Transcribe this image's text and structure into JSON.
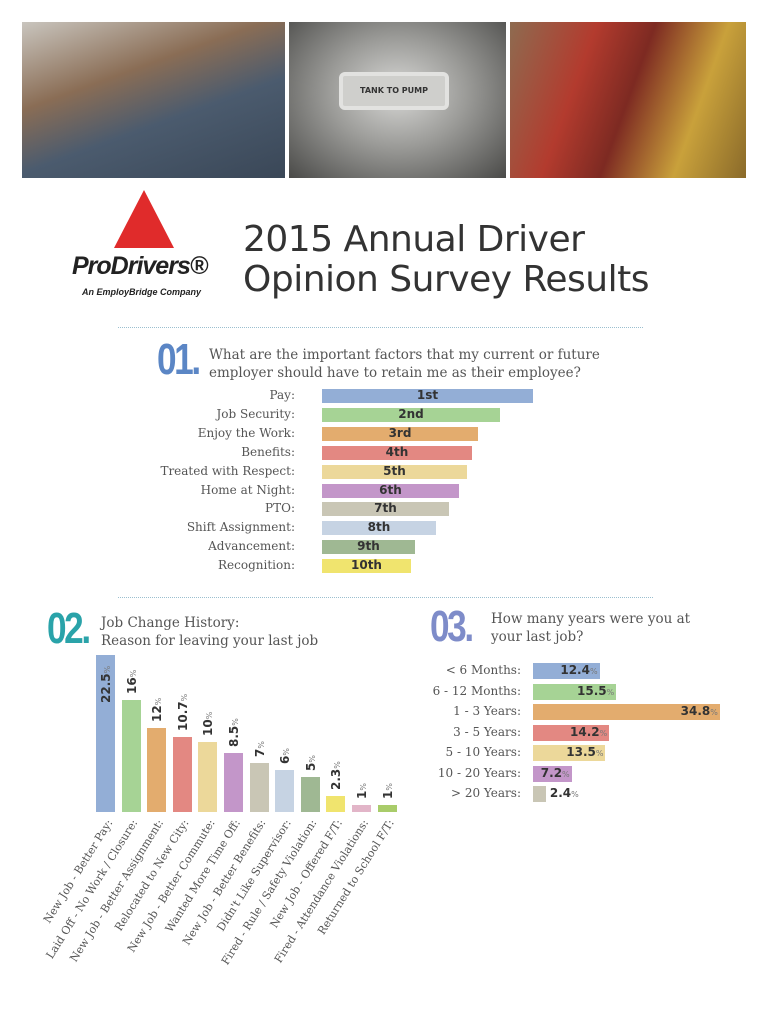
{
  "header": {
    "photos": [
      {
        "name": "drivers-with-clipboard"
      },
      {
        "name": "tank-to-pump-switch",
        "text": "TANK TO PUMP"
      },
      {
        "name": "worker-with-chains"
      }
    ],
    "logo": {
      "name": "ProDrivers®",
      "subtitle": "An EmployBridge Company"
    },
    "title_line1": "2015 Annual Driver",
    "title_line2": "Opinion Survey Results"
  },
  "chart_data": [
    {
      "type": "bar",
      "orientation": "horizontal",
      "number": "01.",
      "title": "What are the important factors that my current or future employer should have to retain me as their employee?",
      "categories": [
        "Pay:",
        "Job Security:",
        "Enjoy the Work:",
        "Benefits:",
        "Treated with Respect:",
        "Home at Night:",
        "PTO:",
        "Shift Assignment:",
        "Advancement:",
        "Recognition:"
      ],
      "values": [
        "1st",
        "2nd",
        "3rd",
        "4th",
        "5th",
        "6th",
        "7th",
        "8th",
        "9th",
        "10th"
      ],
      "colors": [
        "#93aed6",
        "#a6d395",
        "#e3ac6e",
        "#e38882",
        "#ecd89a",
        "#c396c9",
        "#c9c6b5",
        "#c6d3e3",
        "#9fb893",
        "#f0e46e"
      ]
    },
    {
      "type": "bar",
      "orientation": "vertical",
      "number": "02.",
      "title": "Job Change History:",
      "subtitle": "Reason for leaving your last job",
      "unit": "%",
      "categories": [
        "New Job - Better Pay:",
        "Laid Off - No Work / Closure:",
        "New Job - Better Assignment:",
        "Relocated to New City:",
        "New Job - Better Commute:",
        "Wanted More Time Off:",
        "New Job - Better Benefits:",
        "Didn't Like Supervisor:",
        "Fired - Rule / Safety Violation:",
        "New Job - Offered F/T:",
        "Fired - Attendance Violations:",
        "Returned to School F/T:"
      ],
      "values": [
        22.5,
        16,
        12,
        10.7,
        10,
        8.5,
        7,
        6,
        5,
        2.3,
        1,
        1
      ],
      "colors": [
        "#93aed6",
        "#a6d395",
        "#e3ac6e",
        "#e38882",
        "#ecd89a",
        "#c396c9",
        "#c9c6b5",
        "#c6d3e3",
        "#9fb893",
        "#f0e46e",
        "#e2b5c8",
        "#a9cc6a"
      ]
    },
    {
      "type": "bar",
      "orientation": "horizontal",
      "number": "03.",
      "title": "How many years were you at your last job?",
      "unit": "%",
      "categories": [
        "< 6 Months:",
        "6 - 12 Months:",
        "1 - 3 Years:",
        "3 - 5 Years:",
        "5 - 10 Years:",
        "10 - 20 Years:",
        "> 20 Years:"
      ],
      "values": [
        12.4,
        15.5,
        34.8,
        14.2,
        13.5,
        7.2,
        2.4
      ],
      "colors": [
        "#93aed6",
        "#a6d395",
        "#e3ac6e",
        "#e38882",
        "#ecd89a",
        "#c396c9",
        "#c9c6b5"
      ]
    }
  ],
  "colors": {
    "num1": "#5b86c5",
    "num2": "#2aa3a9",
    "num3": "#7e8cc9"
  }
}
